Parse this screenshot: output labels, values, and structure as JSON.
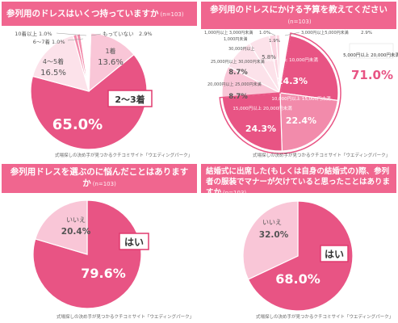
{
  "source": "式場探しの決め手が見つかるクチコミサイト「ウエディングパーク」",
  "colors": {
    "deep": "#e85484",
    "mid": "#f28bab",
    "light": "#f9c6d7",
    "pale": "#fce2ea",
    "banner": "#f0668f",
    "text_pink": "#e03a6e"
  },
  "chart_data": [
    {
      "type": "pie",
      "title": "参列用のドレスはいくつ持っていますか",
      "n": "(n=103)",
      "slices": [
        {
          "label": "2〜3着",
          "value": 65.0,
          "display": "65.0%"
        },
        {
          "label": "4〜5着",
          "value": 16.5,
          "display": "16.5%"
        },
        {
          "label": "6〜7着",
          "value": 1.0,
          "display": "1.0%"
        },
        {
          "label": "10着以上",
          "value": 1.0,
          "display": "1.0%"
        },
        {
          "label": "もっていない",
          "value": 2.9,
          "display": "2.9%"
        },
        {
          "label": "1着",
          "value": 13.6,
          "display": "13.6%"
        }
      ]
    },
    {
      "type": "pie",
      "title": "参列用のドレスにかける予算を教えてください",
      "n": "(n=103)",
      "callout": {
        "label": "5,000円以上 20,000円未満",
        "value": "71.0%"
      },
      "slices": [
        {
          "label": "5,000円以上 10,000円未満",
          "value": 24.3,
          "display": "24.3%"
        },
        {
          "label": "10,000円以上 15,000円未満",
          "value": 22.4,
          "display": "22.4%"
        },
        {
          "label": "15,000円以上 20,000円未満",
          "value": 24.3,
          "display": "24.3%"
        },
        {
          "label": "20,000円以上 25,000円未満",
          "value": 8.7,
          "display": "8.7%"
        },
        {
          "label": "25,000円以上 30,000円未満",
          "value": 8.7,
          "display": "8.7%"
        },
        {
          "label": "30,000円以上",
          "value": 5.8,
          "display": "5.8%"
        },
        {
          "label": "1,000円以上 3,000円未満",
          "value": 1.9,
          "display": "1.9%"
        },
        {
          "label": "1,000円未満",
          "value": 1.0,
          "display": "1.0%"
        },
        {
          "label": "3,000円以上5,000円未満",
          "value": 2.9,
          "display": "2.9%"
        }
      ]
    },
    {
      "type": "pie",
      "title": "参列用ドレスを選ぶのに悩んだことはありますか",
      "n": "(n=103)",
      "slices": [
        {
          "label": "はい",
          "value": 79.6,
          "display": "79.6%"
        },
        {
          "label": "いいえ",
          "value": 20.4,
          "display": "20.4%"
        }
      ]
    },
    {
      "type": "pie",
      "title": "結婚式に出席した(もしくは自身の結婚式の)際、参列者の服装でマナーが欠けていると思ったことはありますか",
      "n": "(n=103)",
      "slices": [
        {
          "label": "はい",
          "value": 68.0,
          "display": "68.0%"
        },
        {
          "label": "いいえ",
          "value": 32.0,
          "display": "32.0%"
        }
      ]
    }
  ]
}
